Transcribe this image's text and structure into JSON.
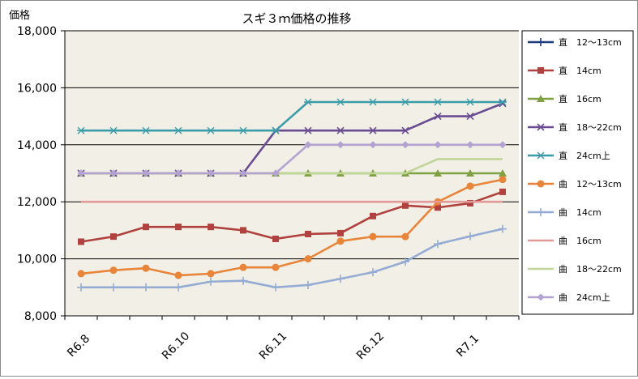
{
  "chart_data": {
    "type": "line",
    "title": "スギ３ｍ価格の推移",
    "ylabel": "価格",
    "xlabel": "",
    "ylim": [
      8000,
      18000
    ],
    "yticks": [
      "8,000",
      "10,000",
      "12,000",
      "14,000",
      "16,000",
      "18,000"
    ],
    "ytick_values": [
      8000,
      10000,
      12000,
      14000,
      16000,
      18000
    ],
    "x_labels": [
      "R6.8",
      "R6.10",
      "R6.11",
      "R6.12",
      "R7.1"
    ],
    "x_label_positions": [
      0,
      3,
      6,
      9,
      12
    ],
    "n_points": 14,
    "grid": "horizontal",
    "legend_position": "right",
    "plot_background": "#f2f0e6",
    "series": [
      {
        "name": "直　12～13cm",
        "color": "#1f3a7a",
        "marker": "plus",
        "values": [
          null,
          null,
          null,
          null,
          null,
          null,
          null,
          null,
          null,
          null,
          null,
          null,
          null,
          null
        ]
      },
      {
        "name": "直　14cm",
        "color": "#b0413e",
        "marker": "square",
        "values": [
          10600,
          10780,
          11120,
          11120,
          11120,
          11000,
          10700,
          10870,
          10900,
          11500,
          11870,
          11800,
          11950,
          12350
        ]
      },
      {
        "name": "直　16cm",
        "color": "#7fa043",
        "marker": "triangle",
        "values": [
          13000,
          13000,
          13000,
          13000,
          13000,
          13000,
          13000,
          13000,
          13000,
          13000,
          13000,
          13000,
          13000,
          13000
        ]
      },
      {
        "name": "直　18～22cm",
        "color": "#6a4c93",
        "marker": "x",
        "values": [
          13000,
          13000,
          13000,
          13000,
          13000,
          13000,
          14500,
          14500,
          14500,
          14500,
          14500,
          15000,
          15000,
          15450
        ]
      },
      {
        "name": "直　24cm上",
        "color": "#3a9ca8",
        "marker": "asterisk",
        "values": [
          14500,
          14500,
          14500,
          14500,
          14500,
          14500,
          14500,
          15500,
          15500,
          15500,
          15500,
          15500,
          15500,
          15500
        ]
      },
      {
        "name": "曲　12～13cm",
        "color": "#e8853a",
        "marker": "circle",
        "values": [
          9480,
          9600,
          9670,
          9420,
          9480,
          9700,
          9700,
          10000,
          10620,
          10780,
          10780,
          12000,
          12550,
          12780
        ]
      },
      {
        "name": "曲　14cm",
        "color": "#94acd4",
        "marker": "plus",
        "values": [
          9000,
          9000,
          9000,
          9000,
          9200,
          9230,
          9000,
          9080,
          9300,
          9530,
          9900,
          10520,
          10790,
          11050
        ]
      },
      {
        "name": "曲　16cm",
        "color": "#e3999a",
        "marker": "none",
        "values": [
          12000,
          12000,
          12000,
          12000,
          12000,
          12000,
          12000,
          12000,
          12000,
          12000,
          12000,
          12000,
          12000,
          12000
        ]
      },
      {
        "name": "曲　18～22cm",
        "color": "#c1d59a",
        "marker": "none",
        "values": [
          13000,
          13000,
          13000,
          13000,
          13000,
          13000,
          13000,
          13000,
          13000,
          13000,
          13000,
          13500,
          13500,
          13500
        ]
      },
      {
        "name": "曲　24cm上",
        "color": "#b3a2d2",
        "marker": "diamond",
        "values": [
          13000,
          13000,
          13000,
          13000,
          13000,
          13000,
          13000,
          14000,
          14000,
          14000,
          14000,
          14000,
          14000,
          14000
        ]
      }
    ]
  }
}
